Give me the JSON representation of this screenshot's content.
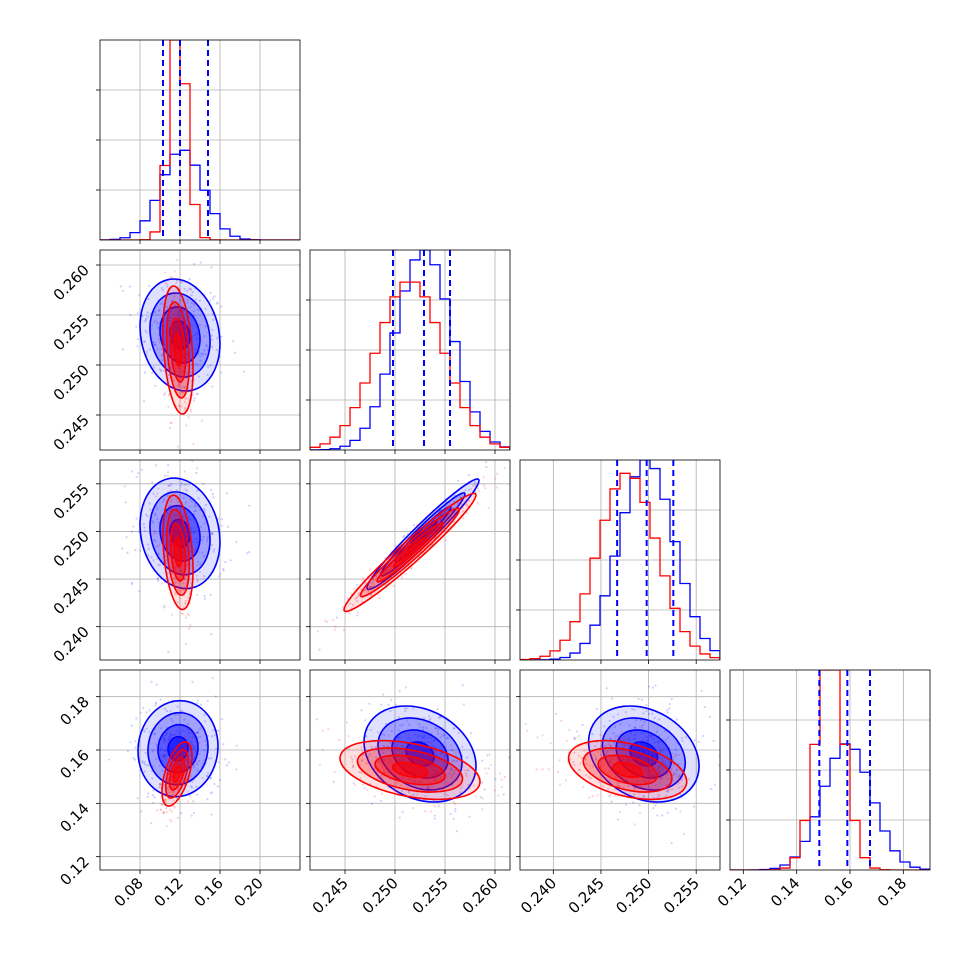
{
  "chart_data": {
    "type": "corner",
    "series": [
      {
        "name": "",
        "color": "#0000ff"
      },
      {
        "name": "",
        "color": "#ff0000"
      }
    ],
    "parameters": [
      {
        "index": 0,
        "range": [
          0.04,
          0.24
        ],
        "ticks": [
          "0.08",
          "0.12",
          "0.16",
          "0.20"
        ]
      },
      {
        "index": 1,
        "range": [
          0.2415,
          0.2615
        ],
        "ticks": [
          "0.245",
          "0.250",
          "0.255",
          "0.260"
        ]
      },
      {
        "index": 2,
        "range": [
          0.2365,
          0.2575
        ],
        "ticks": [
          "0.240",
          "0.245",
          "0.250",
          "0.255"
        ]
      },
      {
        "index": 3,
        "range": [
          0.115,
          0.19
        ],
        "ticks": [
          "0.12",
          "0.14",
          "0.16",
          "0.18"
        ]
      }
    ],
    "quantiles": [
      [
        0.103,
        0.12,
        0.148
      ],
      [
        0.2498,
        0.2529,
        0.2555
      ],
      [
        0.2467,
        0.2498,
        0.2526
      ],
      [
        0.1485,
        0.159,
        0.1675
      ]
    ],
    "marginals": {
      "blue": [
        {
          "mean": 0.122,
          "sd": 0.021
        },
        {
          "mean": 0.2529,
          "sd": 0.0028
        },
        {
          "mean": 0.2498,
          "sd": 0.0029
        },
        {
          "mean": 0.159,
          "sd": 0.0092
        }
      ],
      "red": [
        {
          "mean": 0.118,
          "sd": 0.009
        },
        {
          "mean": 0.2515,
          "sd": 0.0033
        },
        {
          "mean": 0.2478,
          "sd": 0.0031
        },
        {
          "mean": 0.1525,
          "sd": 0.0055
        }
      ]
    },
    "joint": {
      "blue": [
        {
          "x": 0,
          "y": 1,
          "cx": 0.12,
          "cy": 0.253,
          "sx": 0.02,
          "sy": 0.0028,
          "rho": -0.15
        },
        {
          "x": 0,
          "y": 2,
          "cx": 0.12,
          "cy": 0.2498,
          "sx": 0.02,
          "sy": 0.0029,
          "rho": -0.15
        },
        {
          "x": 0,
          "y": 3,
          "cx": 0.118,
          "cy": 0.1605,
          "sx": 0.02,
          "sy": 0.009,
          "rho": 0.05
        },
        {
          "x": 1,
          "y": 2,
          "cx": 0.2528,
          "cy": 0.2497,
          "sx": 0.0028,
          "sy": 0.0029,
          "rho": 0.97
        },
        {
          "x": 1,
          "y": 3,
          "cx": 0.2525,
          "cy": 0.1585,
          "sx": 0.0028,
          "sy": 0.009,
          "rho": -0.25
        },
        {
          "x": 2,
          "y": 3,
          "cx": 0.2495,
          "cy": 0.1585,
          "sx": 0.0029,
          "sy": 0.009,
          "rho": -0.25
        }
      ],
      "red": [
        {
          "x": 0,
          "y": 1,
          "cx": 0.118,
          "cy": 0.2515,
          "sx": 0.0075,
          "sy": 0.0032,
          "rho": -0.3
        },
        {
          "x": 0,
          "y": 2,
          "cx": 0.118,
          "cy": 0.2478,
          "sx": 0.0075,
          "sy": 0.003,
          "rho": -0.3
        },
        {
          "x": 0,
          "y": 3,
          "cx": 0.117,
          "cy": 0.151,
          "sx": 0.0075,
          "sy": 0.006,
          "rho": 0.55
        },
        {
          "x": 1,
          "y": 2,
          "cx": 0.2515,
          "cy": 0.2478,
          "sx": 0.0033,
          "sy": 0.0031,
          "rho": 0.97
        },
        {
          "x": 1,
          "y": 3,
          "cx": 0.2515,
          "cy": 0.1525,
          "sx": 0.0035,
          "sy": 0.0055,
          "rho": -0.4
        },
        {
          "x": 2,
          "y": 3,
          "cx": 0.2478,
          "cy": 0.1525,
          "sx": 0.0031,
          "sy": 0.0055,
          "rho": -0.4
        }
      ]
    },
    "contour_levels_sigma": [
      0.5,
      1.0,
      1.5,
      2.0
    ],
    "grid": true,
    "legend": "none",
    "title": "",
    "xlabel": "",
    "ylabel": ""
  }
}
